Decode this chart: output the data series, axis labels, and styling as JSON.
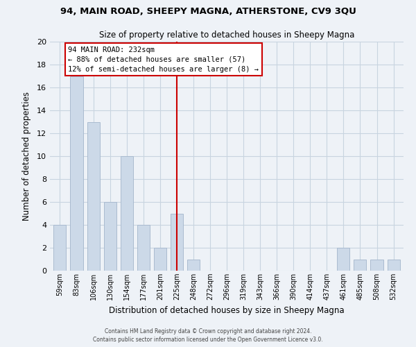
{
  "title": "94, MAIN ROAD, SHEEPY MAGNA, ATHERSTONE, CV9 3QU",
  "subtitle": "Size of property relative to detached houses in Sheepy Magna",
  "xlabel": "Distribution of detached houses by size in Sheepy Magna",
  "ylabel": "Number of detached properties",
  "bar_labels": [
    "59sqm",
    "83sqm",
    "106sqm",
    "130sqm",
    "154sqm",
    "177sqm",
    "201sqm",
    "225sqm",
    "248sqm",
    "272sqm",
    "296sqm",
    "319sqm",
    "343sqm",
    "366sqm",
    "390sqm",
    "414sqm",
    "437sqm",
    "461sqm",
    "485sqm",
    "508sqm",
    "532sqm"
  ],
  "bar_values": [
    4,
    17,
    13,
    6,
    10,
    4,
    2,
    5,
    1,
    0,
    0,
    0,
    0,
    0,
    0,
    0,
    0,
    2,
    1,
    1,
    1
  ],
  "bar_color": "#ccd9e8",
  "bar_edge_color": "#aabbd0",
  "grid_color": "#c8d4e0",
  "background_color": "#eef2f7",
  "vline_x_index": 7,
  "vline_color": "#cc0000",
  "annotation_line1": "94 MAIN ROAD: 232sqm",
  "annotation_line2": "← 88% of detached houses are smaller (57)",
  "annotation_line3": "12% of semi-detached houses are larger (8) →",
  "annotation_box_color": "#ffffff",
  "annotation_box_edge": "#cc0000",
  "ylim": [
    0,
    20
  ],
  "yticks": [
    0,
    2,
    4,
    6,
    8,
    10,
    12,
    14,
    16,
    18,
    20
  ],
  "footer1": "Contains HM Land Registry data © Crown copyright and database right 2024.",
  "footer2": "Contains public sector information licensed under the Open Government Licence v3.0."
}
